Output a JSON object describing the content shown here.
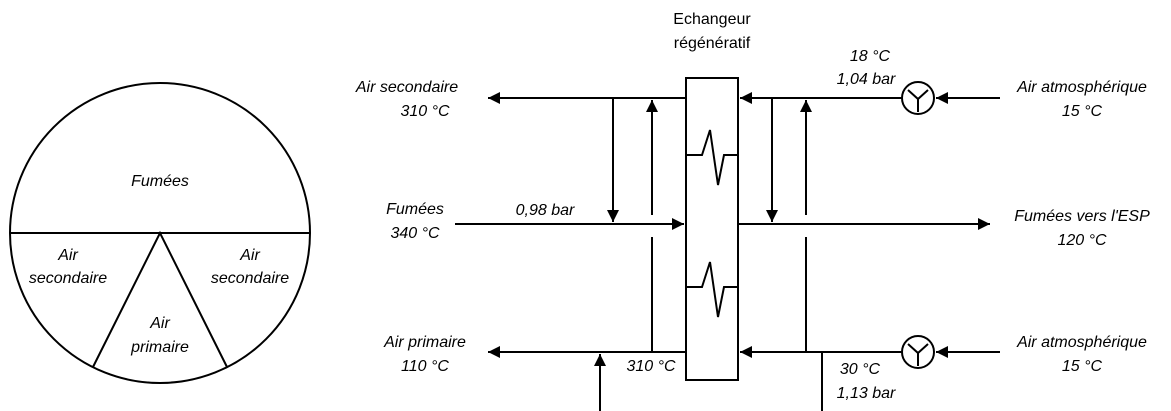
{
  "circle": {
    "top": "Fumées",
    "left": [
      "Air",
      "secondaire"
    ],
    "right": [
      "Air",
      "secondaire"
    ],
    "center": [
      "Air",
      "primaire"
    ]
  },
  "exchanger": [
    "Echangeur",
    "régénératif"
  ],
  "labels": {
    "sec_out": [
      "Air secondaire",
      "310 °C"
    ],
    "top_fan": [
      "18 °C",
      "1,04 bar"
    ],
    "atm_top": [
      "Air atmosphérique",
      "15 °C"
    ],
    "fumes_in": [
      "Fumées",
      "340 °C"
    ],
    "fumes_pressure": "0,98 bar",
    "fumes_out": [
      "Fumées vers l'ESP",
      "120 °C"
    ],
    "prim_out": [
      "Air primaire",
      "110 °C"
    ],
    "prim_temp": "310 °C",
    "atm_bottom": [
      "Air atmosphérique",
      "15 °C"
    ],
    "bottom_fan": [
      "30 °C",
      "1,13 bar"
    ]
  }
}
